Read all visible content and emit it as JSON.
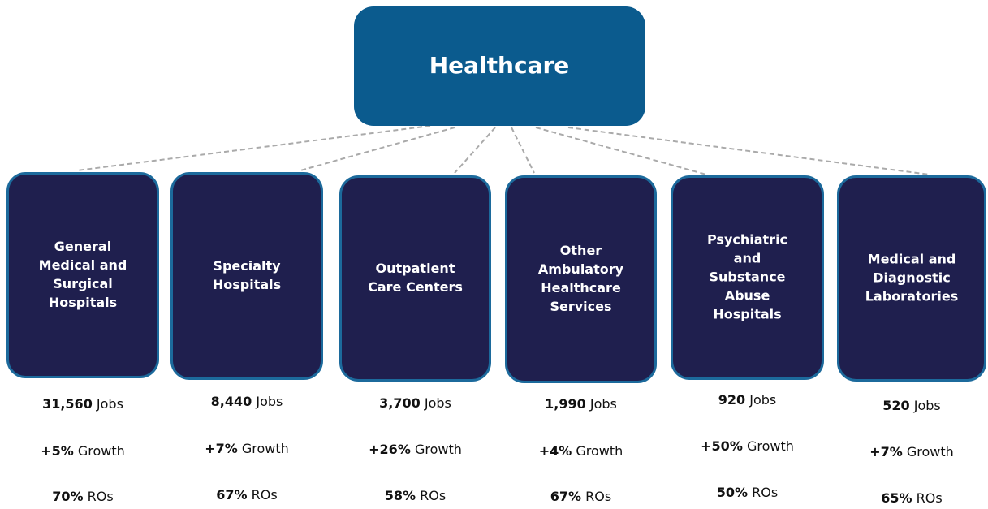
{
  "root": {
    "label": "Healthcare"
  },
  "nodes": [
    {
      "label": [
        "General",
        "Medical and",
        "Surgical",
        "Hospitals"
      ],
      "stats": [
        {
          "bold": "31,560",
          "text": "Jobs"
        },
        {
          "bold": "+5%",
          "text": "Growth"
        },
        {
          "bold": "70%",
          "text": "ROs"
        }
      ]
    },
    {
      "label": [
        "Specialty",
        "Hospitals"
      ],
      "stats": [
        {
          "bold": "8,440",
          "text": "Jobs"
        },
        {
          "bold": "+7%",
          "text": "Growth"
        },
        {
          "bold": "67%",
          "text": "ROs"
        }
      ]
    },
    {
      "label": [
        "Outpatient",
        "Care Centers"
      ],
      "stats": [
        {
          "bold": "3,700",
          "text": "Jobs"
        },
        {
          "bold": "+26%",
          "text": "Growth"
        },
        {
          "bold": "58%",
          "text": "ROs"
        }
      ]
    },
    {
      "label": [
        "Other",
        "Ambulatory",
        "Healthcare",
        "Services"
      ],
      "stats": [
        {
          "bold": "1,990",
          "text": "Jobs"
        },
        {
          "bold": "+4%",
          "text": "Growth"
        },
        {
          "bold": "67%",
          "text": "ROs"
        }
      ]
    },
    {
      "label": [
        "Psychiatric",
        "and",
        "Substance",
        "Abuse",
        "Hospitals"
      ],
      "stats": [
        {
          "bold": "920",
          "text": "Jobs"
        },
        {
          "bold": "+50%",
          "text": "Growth"
        },
        {
          "bold": "50%",
          "text": "ROs"
        }
      ]
    },
    {
      "label": [
        "Medical and",
        "Diagnostic",
        "Laboratories"
      ],
      "stats": [
        {
          "bold": "520",
          "text": "Jobs"
        },
        {
          "bold": "+7%",
          "text": "Growth"
        },
        {
          "bold": "65%",
          "text": "ROs"
        }
      ]
    }
  ]
}
